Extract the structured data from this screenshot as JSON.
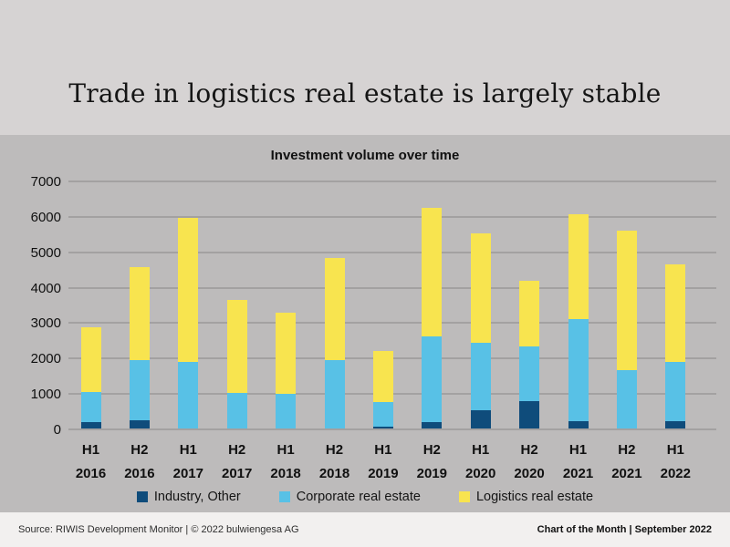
{
  "title": "Trade in logistics real estate is largely stable",
  "chart_data": {
    "type": "bar",
    "stacked": true,
    "title": "Investment volume over time",
    "xlabel": "",
    "ylabel": "",
    "ylim": [
      0,
      7000
    ],
    "ytick_step": 1000,
    "grid": true,
    "legend_position": "bottom",
    "categories_half": [
      "H1",
      "H2",
      "H1",
      "H2",
      "H1",
      "H2",
      "H1",
      "H2",
      "H1",
      "H2",
      "H1",
      "H2",
      "H1"
    ],
    "categories_year": [
      "2016",
      "2016",
      "2017",
      "2017",
      "2018",
      "2018",
      "2019",
      "2019",
      "2020",
      "2020",
      "2021",
      "2021",
      "2022"
    ],
    "series": [
      {
        "name": "Industry, Other",
        "color": "#0f4c7b",
        "values": [
          180,
          220,
          0,
          0,
          0,
          0,
          60,
          180,
          520,
          780,
          200,
          0,
          210
        ]
      },
      {
        "name": "Corporate real estate",
        "color": "#58c1e6",
        "values": [
          850,
          1700,
          1890,
          1000,
          970,
          1930,
          680,
          2420,
          1890,
          1530,
          2880,
          1660,
          1680
        ]
      },
      {
        "name": "Logistics real estate",
        "color": "#f8e44f",
        "values": [
          1830,
          2640,
          4060,
          2640,
          2310,
          2890,
          1460,
          3640,
          3100,
          1870,
          2970,
          3920,
          2740
        ]
      }
    ],
    "totals": [
      2860,
      4560,
      5950,
      3640,
      3280,
      4820,
      2200,
      6240,
      5510,
      4180,
      6050,
      5580,
      4630
    ]
  },
  "footer": {
    "source": "Source: RIWIS Development Monitor | © 2022 bulwiengesa AG",
    "right": "Chart of the Month | September 2022"
  },
  "colors": {
    "header_bg": "#d6d3d3",
    "chart_bg": "#bdbbbb",
    "footer_bg": "#f2f0ef",
    "gridline": "#a3a1a1",
    "industry": "#0f4c7b",
    "corporate": "#58c1e6",
    "logistics": "#f8e44f"
  }
}
